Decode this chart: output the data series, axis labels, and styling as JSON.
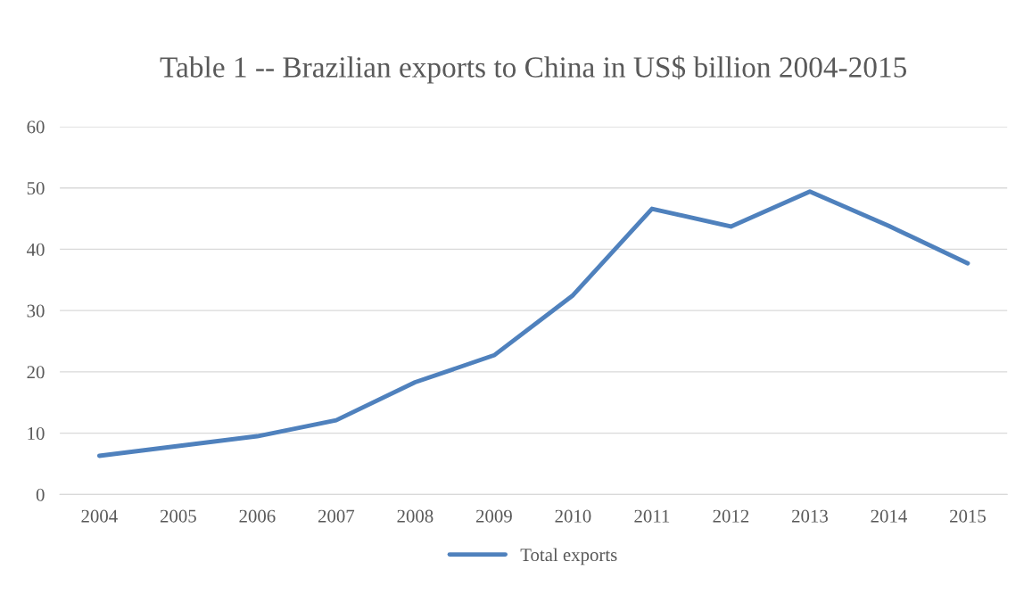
{
  "chart_data": {
    "type": "line",
    "title": "Table 1 -- Brazilian exports to China in US$ billion 2004-2015",
    "categories": [
      "2004",
      "2005",
      "2006",
      "2007",
      "2008",
      "2009",
      "2010",
      "2011",
      "2012",
      "2013",
      "2014",
      "2015"
    ],
    "series": [
      {
        "name": "Total exports",
        "color": "#4f81bd",
        "values": [
          6.3,
          7.9,
          9.5,
          12.1,
          18.3,
          22.7,
          32.5,
          46.6,
          43.7,
          49.4,
          43.8,
          37.7
        ]
      }
    ],
    "ylim": [
      0,
      60
    ],
    "yticks": [
      0,
      10,
      20,
      30,
      40,
      50,
      60
    ],
    "grid": "y",
    "legend": "bottom",
    "marker": "none",
    "line_style": "solid"
  }
}
